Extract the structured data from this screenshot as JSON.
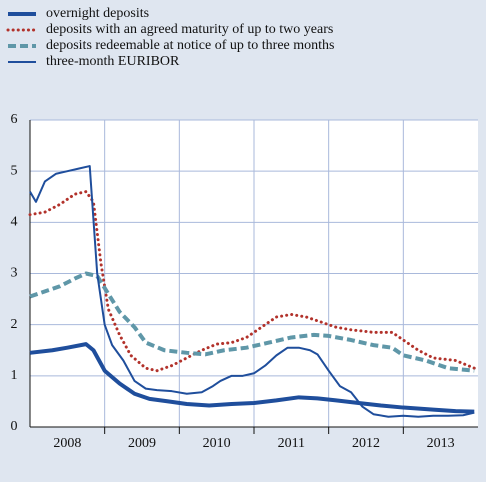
{
  "chart_data": {
    "type": "line",
    "xlim": [
      2008,
      2014
    ],
    "ylim": [
      0,
      6
    ],
    "yticks": [
      0,
      1,
      2,
      3,
      4,
      5,
      6
    ],
    "xticks": [
      {
        "value": 2008.5,
        "label": "2008"
      },
      {
        "value": 2009.5,
        "label": "2009"
      },
      {
        "value": 2010.5,
        "label": "2010"
      },
      {
        "value": 2011.5,
        "label": "2011"
      },
      {
        "value": 2012.5,
        "label": "2012"
      },
      {
        "value": 2013.5,
        "label": "2013"
      }
    ],
    "xgrid": [
      2009,
      2010,
      2011,
      2012,
      2013
    ],
    "grid": true,
    "series": [
      {
        "name": "overnight deposits",
        "color": "#1f4e9c",
        "style": "thick",
        "x": [
          2008.0,
          2008.3,
          2008.5,
          2008.75,
          2008.85,
          2009.0,
          2009.2,
          2009.4,
          2009.6,
          2009.85,
          2010.1,
          2010.4,
          2010.7,
          2011.0,
          2011.3,
          2011.6,
          2011.85,
          2012.1,
          2012.4,
          2012.7,
          2013.0,
          2013.4,
          2013.7,
          2013.95
        ],
        "values": [
          1.45,
          1.5,
          1.55,
          1.62,
          1.5,
          1.1,
          0.85,
          0.65,
          0.55,
          0.5,
          0.45,
          0.42,
          0.45,
          0.47,
          0.52,
          0.58,
          0.56,
          0.52,
          0.47,
          0.42,
          0.38,
          0.34,
          0.31,
          0.3
        ]
      },
      {
        "name": "deposits with an agreed maturity of up to two years",
        "color": "#b2322b",
        "style": "dotted",
        "x": [
          2008.0,
          2008.2,
          2008.4,
          2008.6,
          2008.75,
          2008.85,
          2008.95,
          2009.05,
          2009.2,
          2009.35,
          2009.55,
          2009.7,
          2009.9,
          2010.1,
          2010.3,
          2010.5,
          2010.7,
          2010.9,
          2011.1,
          2011.3,
          2011.5,
          2011.7,
          2011.9,
          2012.1,
          2012.3,
          2012.6,
          2012.85,
          2013.0,
          2013.2,
          2013.4,
          2013.7,
          2013.95
        ],
        "values": [
          4.15,
          4.2,
          4.35,
          4.55,
          4.6,
          4.4,
          3.2,
          2.3,
          1.8,
          1.4,
          1.15,
          1.1,
          1.2,
          1.35,
          1.5,
          1.62,
          1.65,
          1.75,
          1.95,
          2.15,
          2.2,
          2.15,
          2.05,
          1.95,
          1.9,
          1.85,
          1.85,
          1.7,
          1.5,
          1.35,
          1.3,
          1.15
        ]
      },
      {
        "name": "deposits redeemable at notice of up to three months",
        "color": "#5f97a8",
        "style": "dashed",
        "x": [
          2008.0,
          2008.2,
          2008.4,
          2008.6,
          2008.75,
          2008.9,
          2009.05,
          2009.2,
          2009.4,
          2009.55,
          2009.8,
          2010.1,
          2010.35,
          2010.6,
          2010.9,
          2011.2,
          2011.5,
          2011.8,
          2012.0,
          2012.3,
          2012.6,
          2012.85,
          2013.0,
          2013.3,
          2013.6,
          2013.95
        ],
        "values": [
          2.55,
          2.65,
          2.75,
          2.9,
          3.0,
          2.95,
          2.6,
          2.25,
          1.95,
          1.65,
          1.5,
          1.45,
          1.42,
          1.5,
          1.55,
          1.65,
          1.75,
          1.8,
          1.78,
          1.7,
          1.6,
          1.55,
          1.4,
          1.3,
          1.15,
          1.1
        ]
      },
      {
        "name": "three-month EURIBOR",
        "color": "#1f4e9c",
        "style": "thin",
        "x": [
          2008.0,
          2008.08,
          2008.2,
          2008.35,
          2008.5,
          2008.65,
          2008.8,
          2008.9,
          2009.0,
          2009.1,
          2009.25,
          2009.4,
          2009.55,
          2009.7,
          2009.9,
          2010.1,
          2010.3,
          2010.45,
          2010.55,
          2010.7,
          2010.85,
          2011.0,
          2011.15,
          2011.3,
          2011.45,
          2011.6,
          2011.75,
          2011.85,
          2012.0,
          2012.15,
          2012.3,
          2012.45,
          2012.6,
          2012.8,
          2013.0,
          2013.2,
          2013.4,
          2013.6,
          2013.8,
          2013.95
        ],
        "values": [
          4.6,
          4.4,
          4.8,
          4.95,
          5.0,
          5.05,
          5.1,
          3.0,
          2.0,
          1.6,
          1.3,
          0.9,
          0.75,
          0.72,
          0.7,
          0.65,
          0.68,
          0.8,
          0.9,
          1.0,
          1.0,
          1.05,
          1.2,
          1.4,
          1.55,
          1.55,
          1.5,
          1.42,
          1.1,
          0.8,
          0.68,
          0.4,
          0.25,
          0.2,
          0.22,
          0.2,
          0.22,
          0.22,
          0.23,
          0.28
        ]
      }
    ]
  }
}
